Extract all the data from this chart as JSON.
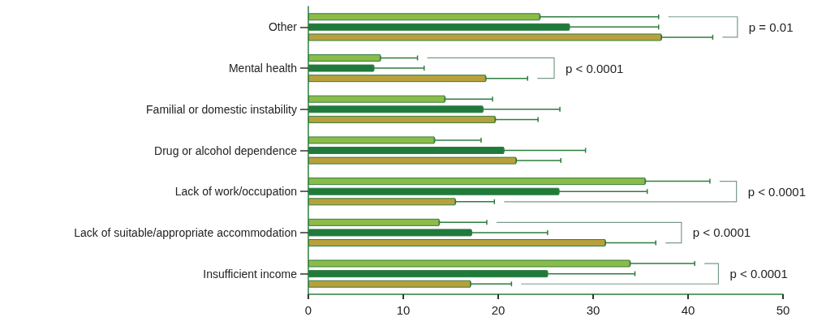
{
  "chart_data": {
    "type": "bar",
    "orientation": "horizontal",
    "categories": [
      "Other",
      "Mental health",
      "Familial or domestic instability",
      "Drug or alcohol dependence",
      "Lack of work/occupation",
      "Lack of suitable/appropriate accommodation",
      "Insufficient income"
    ],
    "series": [
      {
        "color": "#8dbb48",
        "values": [
          24.4,
          7.6,
          14.4,
          13.3,
          35.5,
          13.8,
          33.9
        ],
        "errors": [
          [
            24.4,
            36.9
          ],
          [
            7.6,
            11.5
          ],
          [
            14.4,
            19.4
          ],
          [
            13.3,
            18.2
          ],
          [
            35.5,
            42.3
          ],
          [
            13.8,
            18.8
          ],
          [
            33.9,
            40.7
          ]
        ]
      },
      {
        "color": "#1f7a3c",
        "values": [
          27.5,
          6.9,
          18.4,
          20.6,
          26.4,
          17.2,
          25.2
        ],
        "errors": [
          [
            27.5,
            36.9
          ],
          [
            6.9,
            12.2
          ],
          [
            18.4,
            26.5
          ],
          [
            20.6,
            29.2
          ],
          [
            26.4,
            35.7
          ],
          [
            17.2,
            25.2
          ],
          [
            25.2,
            34.4
          ]
        ]
      },
      {
        "color": "#b9a03c",
        "values": [
          37.2,
          18.7,
          19.7,
          21.9,
          15.5,
          31.3,
          17.1
        ],
        "errors": [
          [
            37.2,
            42.6
          ],
          [
            18.7,
            23.1
          ],
          [
            19.7,
            24.2
          ],
          [
            21.9,
            26.6
          ],
          [
            15.5,
            19.6
          ],
          [
            31.3,
            36.6
          ],
          [
            17.1,
            21.4
          ]
        ]
      }
    ],
    "xlim": [
      0,
      50
    ],
    "xticks": [
      0,
      10,
      20,
      30,
      40,
      50
    ],
    "grid": false,
    "annotations": [
      "p = 0.01",
      "p < 0.0001",
      "p < 0.0001",
      "p < 0.0001",
      "p < 0.0001"
    ]
  }
}
